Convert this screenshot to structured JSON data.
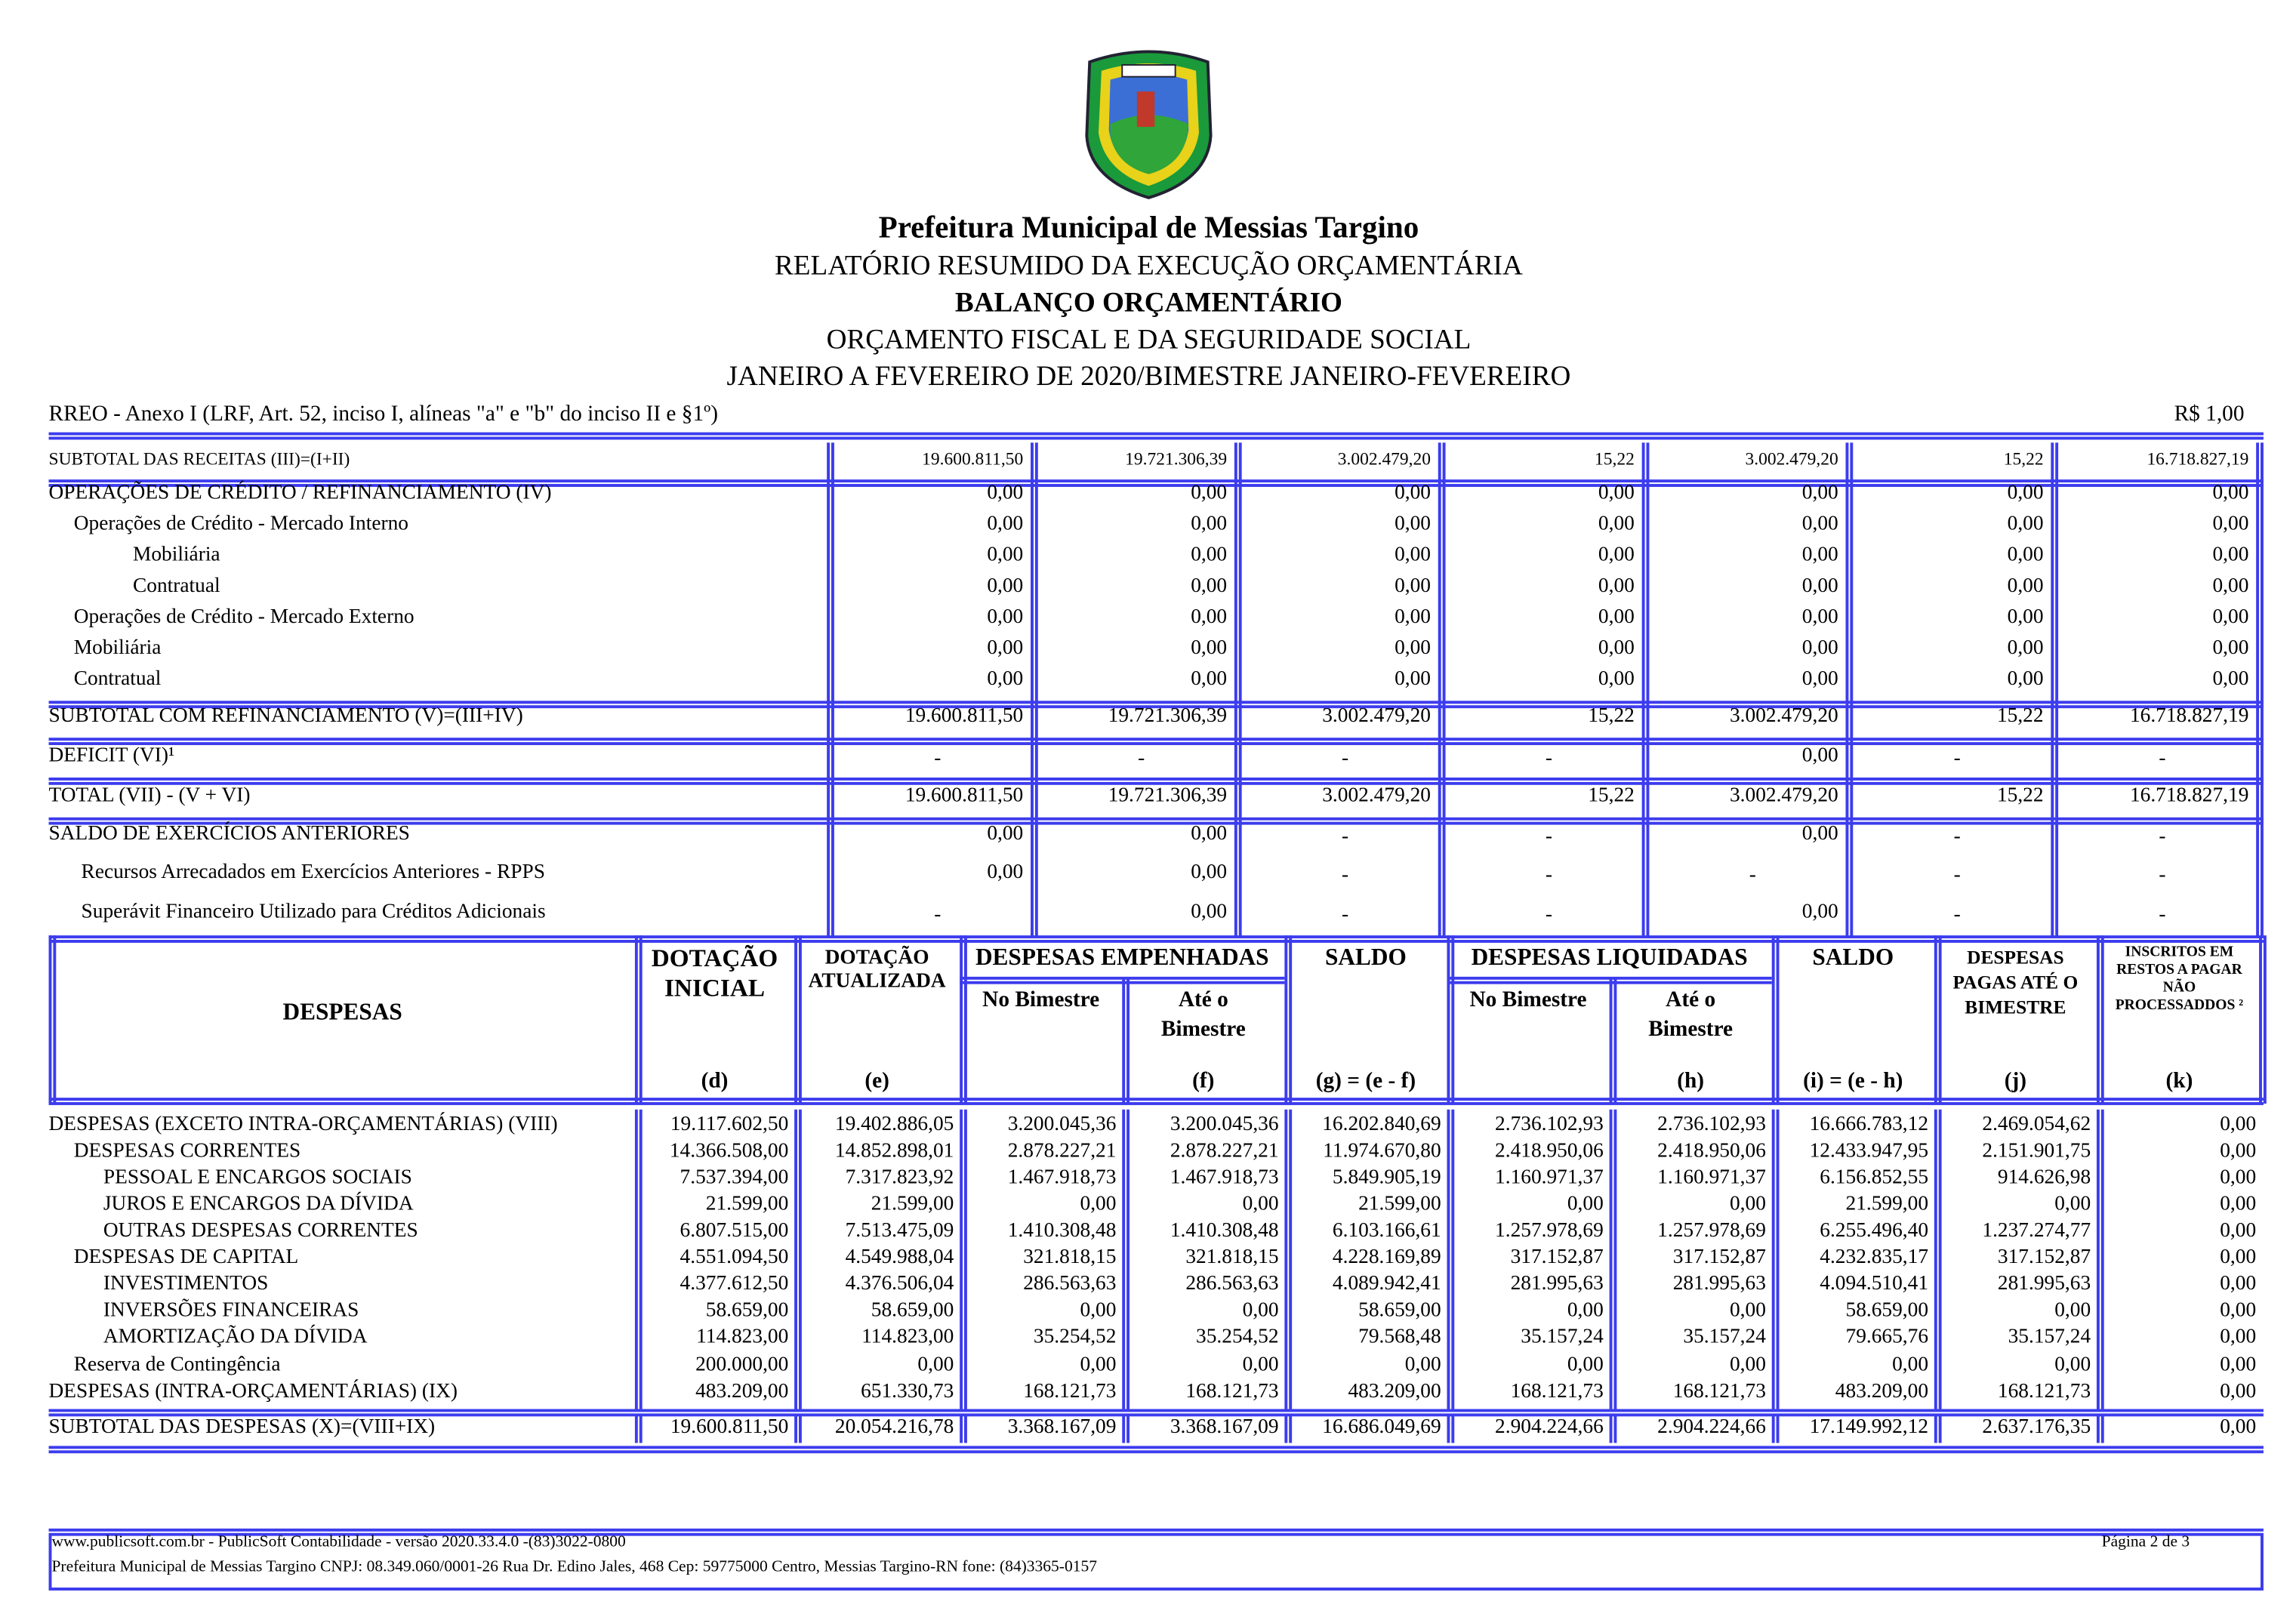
{
  "header": {
    "title": "Prefeitura Municipal de Messias Targino",
    "lines": [
      "RELATÓRIO RESUMIDO DA EXECUÇÃO ORÇAMENTÁRIA",
      "BALANÇO ORÇAMENTÁRIO",
      "ORÇAMENTO FISCAL E DA SEGURIDADE SOCIAL",
      "JANEIRO A FEVEREIRO DE 2020/BIMESTRE JANEIRO-FEVEREIRO"
    ],
    "annex": "RREO - Anexo I (LRF, Art. 52, inciso I, alíneas \"a\" e \"b\" do inciso II e §1º)",
    "unit": "R$ 1,00"
  },
  "receitas": {
    "rows": [
      [
        "SUBTOTAL DAS RECEITAS (III)=(I+II)",
        "19.600.811,50",
        "19.721.306,39",
        "3.002.479,20",
        "15,22",
        "3.002.479,20",
        "15,22",
        "16.718.827,19"
      ],
      [
        "OPERAÇÕES DE CRÉDITO / REFINANCIAMENTO (IV)",
        "0,00",
        "0,00",
        "0,00",
        "0,00",
        "0,00",
        "0,00",
        "0,00"
      ],
      [
        "Operações de Crédito - Mercado Interno",
        "0,00",
        "0,00",
        "0,00",
        "0,00",
        "0,00",
        "0,00",
        "0,00"
      ],
      [
        "Mobiliária",
        "0,00",
        "0,00",
        "0,00",
        "0,00",
        "0,00",
        "0,00",
        "0,00"
      ],
      [
        "Contratual",
        "0,00",
        "0,00",
        "0,00",
        "0,00",
        "0,00",
        "0,00",
        "0,00"
      ],
      [
        "Operações de Crédito - Mercado Externo",
        "0,00",
        "0,00",
        "0,00",
        "0,00",
        "0,00",
        "0,00",
        "0,00"
      ],
      [
        "Mobiliária",
        "0,00",
        "0,00",
        "0,00",
        "0,00",
        "0,00",
        "0,00",
        "0,00"
      ],
      [
        "Contratual",
        "0,00",
        "0,00",
        "0,00",
        "0,00",
        "0,00",
        "0,00",
        "0,00"
      ],
      [
        "SUBTOTAL COM REFINANCIAMENTO (V)=(III+IV)",
        "19.600.811,50",
        "19.721.306,39",
        "3.002.479,20",
        "15,22",
        "3.002.479,20",
        "15,22",
        "16.718.827,19"
      ],
      [
        "DEFICIT (VI)¹",
        "-",
        "-",
        "-",
        "-",
        "0,00",
        "-",
        "-"
      ],
      [
        "TOTAL (VII) - (V + VI)",
        "19.600.811,50",
        "19.721.306,39",
        "3.002.479,20",
        "15,22",
        "3.002.479,20",
        "15,22",
        "16.718.827,19"
      ],
      [
        "SALDO DE EXERCÍCIOS ANTERIORES",
        "0,00",
        "0,00",
        "-",
        "-",
        "0,00",
        "-",
        "-"
      ],
      [
        "Recursos Arrecadados em Exercícios Anteriores - RPPS",
        "0,00",
        "0,00",
        "-",
        "-",
        "-",
        "-",
        "-"
      ],
      [
        "Superávit Financeiro Utilizado para Créditos Adicionais",
        "-",
        "0,00",
        "-",
        "-",
        "0,00",
        "-",
        "-"
      ]
    ]
  },
  "despesas": {
    "label": "DESPESAS",
    "groups": [
      "DESPESAS EMPENHADAS",
      "DESPESAS LIQUIDADAS"
    ],
    "header_cells": [
      {
        "lines": [
          "DOTAÇÃO",
          "INICIAL"
        ],
        "letter": "(d)"
      },
      {
        "lines": [
          "DOTAÇÃO",
          "ATUALIZADA"
        ],
        "letter": "(e)"
      },
      {
        "lines": [
          "No Bimestre"
        ]
      },
      {
        "lines": [
          "Até o",
          "Bimestre"
        ],
        "letter": "(f)"
      },
      {
        "lines": [
          "SALDO"
        ],
        "letter": "(g) = (e - f)"
      },
      {
        "lines": [
          "No Bimestre"
        ]
      },
      {
        "lines": [
          "Até o",
          "Bimestre"
        ],
        "letter": "(h)"
      },
      {
        "lines": [
          "SALDO"
        ],
        "letter": "(i) = (e - h)"
      },
      {
        "lines": [
          "DESPESAS",
          "PAGAS ATÉ O",
          "BIMESTRE"
        ],
        "letter": "(j)"
      },
      {
        "lines": [
          "INSCRITOS EM",
          "RESTOS A PAGAR",
          "NÃO",
          "PROCESSADDOS ²"
        ],
        "letter": "(k)"
      }
    ],
    "rows": [
      [
        "DESPESAS (EXCETO INTRA-ORÇAMENTÁRIAS) (VIII)",
        "19.117.602,50",
        "19.402.886,05",
        "3.200.045,36",
        "3.200.045,36",
        "16.202.840,69",
        "2.736.102,93",
        "2.736.102,93",
        "16.666.783,12",
        "2.469.054,62",
        "0,00"
      ],
      [
        "DESPESAS CORRENTES",
        "14.366.508,00",
        "14.852.898,01",
        "2.878.227,21",
        "2.878.227,21",
        "11.974.670,80",
        "2.418.950,06",
        "2.418.950,06",
        "12.433.947,95",
        "2.151.901,75",
        "0,00"
      ],
      [
        "PESSOAL E ENCARGOS SOCIAIS",
        "7.537.394,00",
        "7.317.823,92",
        "1.467.918,73",
        "1.467.918,73",
        "5.849.905,19",
        "1.160.971,37",
        "1.160.971,37",
        "6.156.852,55",
        "914.626,98",
        "0,00"
      ],
      [
        "JUROS E ENCARGOS DA DÍVIDA",
        "21.599,00",
        "21.599,00",
        "0,00",
        "0,00",
        "21.599,00",
        "0,00",
        "0,00",
        "21.599,00",
        "0,00",
        "0,00"
      ],
      [
        "OUTRAS DESPESAS CORRENTES",
        "6.807.515,00",
        "7.513.475,09",
        "1.410.308,48",
        "1.410.308,48",
        "6.103.166,61",
        "1.257.978,69",
        "1.257.978,69",
        "6.255.496,40",
        "1.237.274,77",
        "0,00"
      ],
      [
        "DESPESAS DE CAPITAL",
        "4.551.094,50",
        "4.549.988,04",
        "321.818,15",
        "321.818,15",
        "4.228.169,89",
        "317.152,87",
        "317.152,87",
        "4.232.835,17",
        "317.152,87",
        "0,00"
      ],
      [
        "INVESTIMENTOS",
        "4.377.612,50",
        "4.376.506,04",
        "286.563,63",
        "286.563,63",
        "4.089.942,41",
        "281.995,63",
        "281.995,63",
        "4.094.510,41",
        "281.995,63",
        "0,00"
      ],
      [
        "INVERSÕES FINANCEIRAS",
        "58.659,00",
        "58.659,00",
        "0,00",
        "0,00",
        "58.659,00",
        "0,00",
        "0,00",
        "58.659,00",
        "0,00",
        "0,00"
      ],
      [
        "AMORTIZAÇÃO DA DÍVIDA",
        "114.823,00",
        "114.823,00",
        "35.254,52",
        "35.254,52",
        "79.568,48",
        "35.157,24",
        "35.157,24",
        "79.665,76",
        "35.157,24",
        "0,00"
      ],
      [
        "Reserva de Contingência",
        "200.000,00",
        "0,00",
        "0,00",
        "0,00",
        "0,00",
        "0,00",
        "0,00",
        "0,00",
        "0,00",
        "0,00"
      ],
      [
        "DESPESAS (INTRA-ORÇAMENTÁRIAS) (IX)",
        "483.209,00",
        "651.330,73",
        "168.121,73",
        "168.121,73",
        "483.209,00",
        "168.121,73",
        "168.121,73",
        "483.209,00",
        "168.121,73",
        "0,00"
      ],
      [
        "SUBTOTAL DAS DESPESAS (X)=(VIII+IX)",
        "19.600.811,50",
        "20.054.216,78",
        "3.368.167,09",
        "3.368.167,09",
        "16.686.049,69",
        "2.904.224,66",
        "2.904.224,66",
        "17.149.992,12",
        "2.637.176,35",
        "0,00"
      ]
    ]
  },
  "footer": {
    "line1": "www.publicsoft.com.br - PublicSoft Contabilidade - versão 2020.33.4.0 -(83)3022-0800",
    "page": "Página 2 de 3",
    "line2": "Prefeitura Municipal de Messias Targino CNPJ: 08.349.060/0001-26 Rua Dr. Edino Jales, 468 Cep: 59775000 Centro, Messias Targino-RN fone: (84)3365-0157"
  }
}
